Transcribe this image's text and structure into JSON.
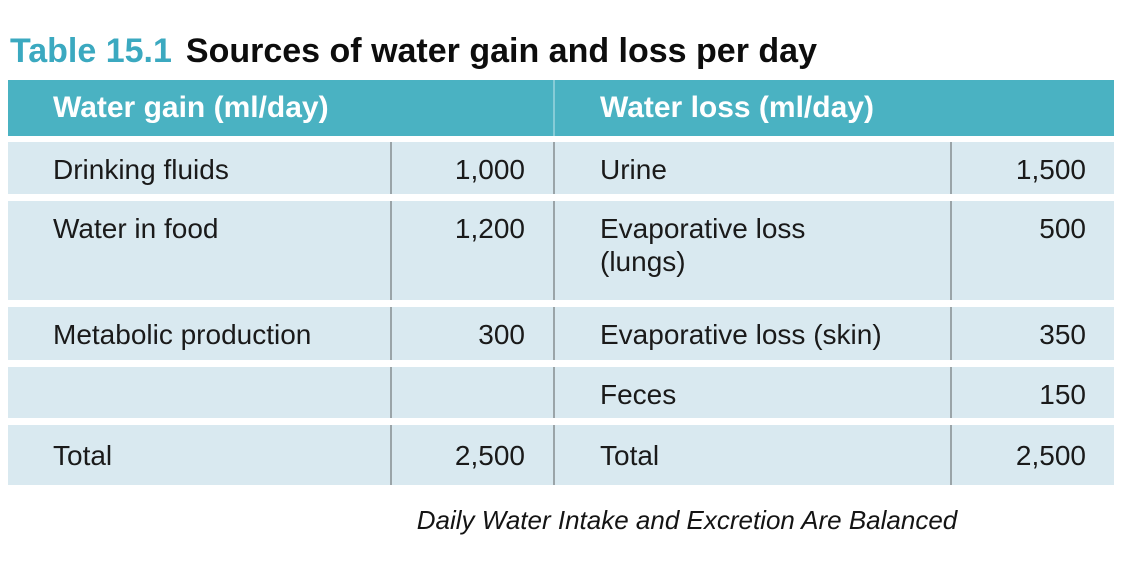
{
  "title": {
    "number": "Table 15.1",
    "text": "Sources of water gain and loss per day"
  },
  "table": {
    "left": {
      "header": "Water gain (ml/day)",
      "rows": [
        {
          "label": "Drinking fluids",
          "value": "1,000"
        },
        {
          "label": "Water in food",
          "value": "1,200"
        },
        {
          "label": "Metabolic production",
          "value": "300"
        },
        {
          "label": "",
          "value": ""
        },
        {
          "label": "Total",
          "value": "2,500"
        }
      ]
    },
    "right": {
      "header": "Water loss (ml/day)",
      "rows": [
        {
          "label": "Urine",
          "value": "1,500"
        },
        {
          "label": "Evaporative loss\n(lungs)",
          "value": "500"
        },
        {
          "label": "Evaporative loss (skin)",
          "value": "350"
        },
        {
          "label": "Feces",
          "value": "150"
        },
        {
          "label": "Total",
          "value": "2,500"
        }
      ]
    }
  },
  "caption": "Daily Water Intake and Excretion Are Balanced",
  "colors": {
    "title_accent": "#3ba9c0",
    "header_bg": "#4ab2c2",
    "header_divider": "#86ccd7",
    "row_bg": "#d9e9f0",
    "cell_divider": "#9aa4a8",
    "text": "#1a1a1a",
    "header_text": "#ffffff"
  },
  "chart_data": {
    "type": "table",
    "title": "Table 15.1 Sources of water gain and loss per day",
    "caption": "Daily Water Intake and Excretion Are Balanced",
    "columns": [
      "Water gain (ml/day)",
      "ml/day",
      "Water loss (ml/day)",
      "ml/day"
    ],
    "water_gain_ml_per_day": {
      "Drinking fluids": 1000,
      "Water in food": 1200,
      "Metabolic production": 300,
      "Total": 2500
    },
    "water_loss_ml_per_day": {
      "Urine": 1500,
      "Evaporative loss (lungs)": 500,
      "Evaporative loss (skin)": 350,
      "Feces": 150,
      "Total": 2500
    }
  }
}
